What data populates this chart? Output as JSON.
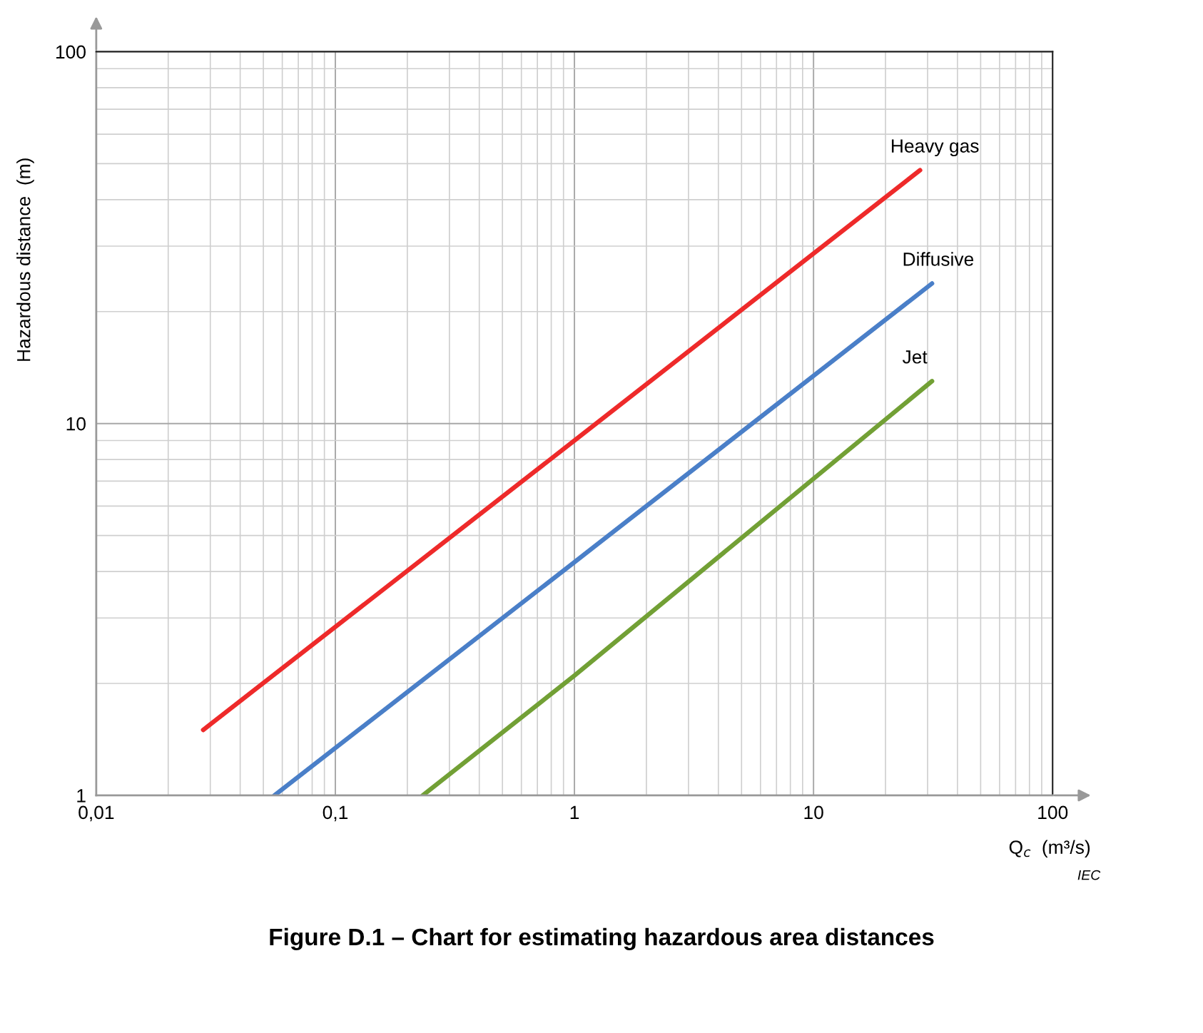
{
  "chart_data": {
    "type": "line",
    "title": "Figure D.1 – Chart for estimating hazardous area distances",
    "xlabel": "Q$_{c}$  (m³/s)",
    "ylabel": "Hazardous distance  (m)",
    "log": "xy",
    "grid": true,
    "legend": false,
    "line_style": "solid",
    "marker": "none",
    "xlim": [
      0.01,
      100
    ],
    "ylim": [
      1,
      100
    ],
    "xticks": [
      {
        "value": 0.01,
        "label": "0,01"
      },
      {
        "value": 0.1,
        "label": "0,1"
      },
      1,
      10,
      100
    ],
    "yticks": [
      1,
      10,
      100
    ],
    "series": [
      {
        "name": "Heavy gas",
        "color": "#ee2a2a",
        "x": [
          0.028,
          1,
          27.9
        ],
        "values": [
          1.5,
          9.0,
          48
        ]
      },
      {
        "name": "Diffusive",
        "color": "#4a7fc8",
        "x": [
          0.0556,
          1,
          31.3
        ],
        "values": [
          1,
          4.24,
          23.8
        ]
      },
      {
        "name": "Jet",
        "color": "#72a035",
        "x": [
          0.232,
          1,
          31.3
        ],
        "values": [
          1,
          2.1,
          13.0
        ]
      }
    ],
    "annotations": [
      "IEC"
    ]
  }
}
